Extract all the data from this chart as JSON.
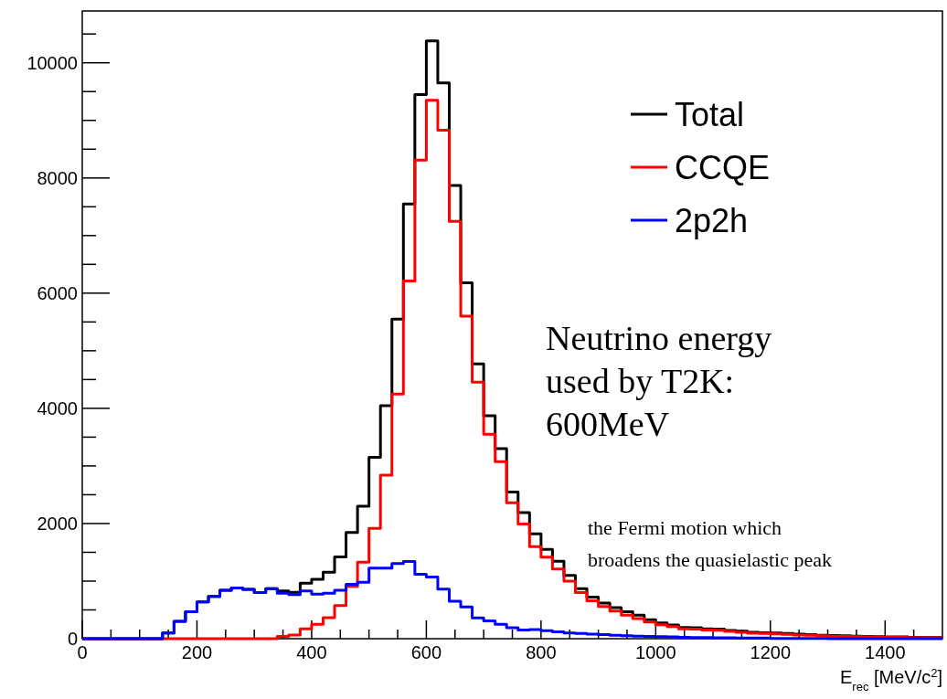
{
  "chart_data": {
    "type": "histogram",
    "xlabel": "E$_{rec}$ [MeV/c$^{2}$]",
    "bins": [
      0,
      20,
      40,
      60,
      80,
      100,
      120,
      140,
      160,
      180,
      200,
      220,
      240,
      260,
      280,
      300,
      320,
      340,
      360,
      380,
      400,
      420,
      440,
      460,
      480,
      500,
      520,
      540,
      560,
      580,
      600,
      620,
      640,
      660,
      680,
      700,
      720,
      740,
      760,
      780,
      800,
      820,
      840,
      860,
      880,
      900,
      920,
      940,
      960,
      980,
      1000,
      1020,
      1040,
      1060,
      1080,
      1100,
      1120,
      1140,
      1160,
      1180,
      1200,
      1220,
      1240,
      1260,
      1280,
      1300,
      1320,
      1340,
      1360,
      1380,
      1400,
      1420,
      1440,
      1460,
      1480,
      1500
    ],
    "series": [
      {
        "name": "Total",
        "color": "#000000",
        "values": [
          0,
          0,
          0,
          0,
          0,
          0,
          0,
          100,
          300,
          470,
          640,
          735,
          840,
          880,
          855,
          800,
          870,
          830,
          805,
          965,
          1030,
          1155,
          1420,
          1845,
          2300,
          3150,
          4045,
          5550,
          7550,
          9450,
          10380,
          9650,
          7870,
          6180,
          4770,
          3870,
          3300,
          2545,
          2190,
          1820,
          1550,
          1345,
          1100,
          870,
          720,
          620,
          540,
          470,
          407,
          328,
          275,
          238,
          195,
          190,
          170,
          165,
          143,
          130,
          110,
          105,
          100,
          90,
          80,
          70,
          60,
          55,
          50,
          45,
          40,
          35,
          30,
          30,
          25,
          20,
          20
        ]
      },
      {
        "name": "CCQE",
        "color": "#ff0000",
        "values": [
          0,
          0,
          0,
          0,
          0,
          0,
          0,
          0,
          0,
          0,
          0,
          0,
          0,
          0,
          0,
          0,
          0,
          40,
          65,
          170,
          250,
          365,
          575,
          910,
          1330,
          1915,
          2840,
          4250,
          6210,
          8310,
          9350,
          8830,
          7245,
          5600,
          4455,
          3550,
          3075,
          2360,
          1990,
          1600,
          1415,
          1210,
          1000,
          800,
          660,
          560,
          480,
          410,
          350,
          290,
          240,
          210,
          170,
          165,
          150,
          145,
          125,
          110,
          95,
          90,
          85,
          75,
          65,
          60,
          50,
          45,
          40,
          35,
          30,
          30,
          25,
          25,
          20,
          15,
          15
        ]
      },
      {
        "name": "2p2h",
        "color": "#0000ff",
        "values": [
          0,
          0,
          0,
          0,
          0,
          0,
          0,
          100,
          300,
          470,
          640,
          735,
          840,
          880,
          855,
          800,
          870,
          790,
          765,
          830,
          775,
          790,
          840,
          945,
          980,
          1225,
          1225,
          1305,
          1340,
          1120,
          1070,
          860,
          650,
          550,
          360,
          310,
          250,
          190,
          150,
          160,
          140,
          120,
          100,
          90,
          80,
          70,
          60,
          50,
          45,
          40,
          35,
          30,
          25,
          20,
          20,
          15,
          15,
          10,
          10,
          10,
          5,
          5,
          5,
          5,
          5,
          0,
          0,
          0,
          0,
          0,
          0,
          0,
          0,
          0,
          0
        ]
      }
    ],
    "xlim": [
      0,
      1500
    ],
    "ylim": [
      0,
      10900
    ],
    "xticks": [
      0,
      {
        "value": 50,
        "label": null
      },
      {
        "value": 100,
        "label": null
      },
      {
        "value": 150,
        "label": null
      },
      200,
      {
        "value": 250,
        "label": null
      },
      {
        "value": 300,
        "label": null
      },
      {
        "value": 350,
        "label": null
      },
      400,
      {
        "value": 450,
        "label": null
      },
      {
        "value": 500,
        "label": null
      },
      {
        "value": 550,
        "label": null
      },
      600,
      {
        "value": 650,
        "label": null
      },
      {
        "value": 700,
        "label": null
      },
      {
        "value": 750,
        "label": null
      },
      800,
      {
        "value": 850,
        "label": null
      },
      {
        "value": 900,
        "label": null
      },
      {
        "value": 950,
        "label": null
      },
      1000,
      {
        "value": 1050,
        "label": null
      },
      {
        "value": 1100,
        "label": null
      },
      {
        "value": 1150,
        "label": null
      },
      1200,
      {
        "value": 1250,
        "label": null
      },
      {
        "value": 1300,
        "label": null
      },
      {
        "value": 1350,
        "label": null
      },
      1400,
      {
        "value": 1450,
        "label": null
      }
    ],
    "yticks": [
      0,
      {
        "value": 500,
        "label": null
      },
      {
        "value": 1000,
        "label": null
      },
      {
        "value": 1500,
        "label": null
      },
      2000,
      {
        "value": 2500,
        "label": null
      },
      {
        "value": 3000,
        "label": null
      },
      {
        "value": 3500,
        "label": null
      },
      4000,
      {
        "value": 4500,
        "label": null
      },
      {
        "value": 5000,
        "label": null
      },
      {
        "value": 5500,
        "label": null
      },
      6000,
      {
        "value": 6500,
        "label": null
      },
      {
        "value": 7000,
        "label": null
      },
      {
        "value": 7500,
        "label": null
      },
      8000,
      {
        "value": 8500,
        "label": null
      },
      {
        "value": 9000,
        "label": null
      },
      {
        "value": 9500,
        "label": null
      },
      10000,
      {
        "value": 10500,
        "label": null
      }
    ],
    "legend": "top right",
    "grid": false,
    "annotations": [
      "Neutrino energy\nused by T2K:\n600MeV",
      "the Fermi motion which\nbroadens the quasielastic peak"
    ]
  }
}
